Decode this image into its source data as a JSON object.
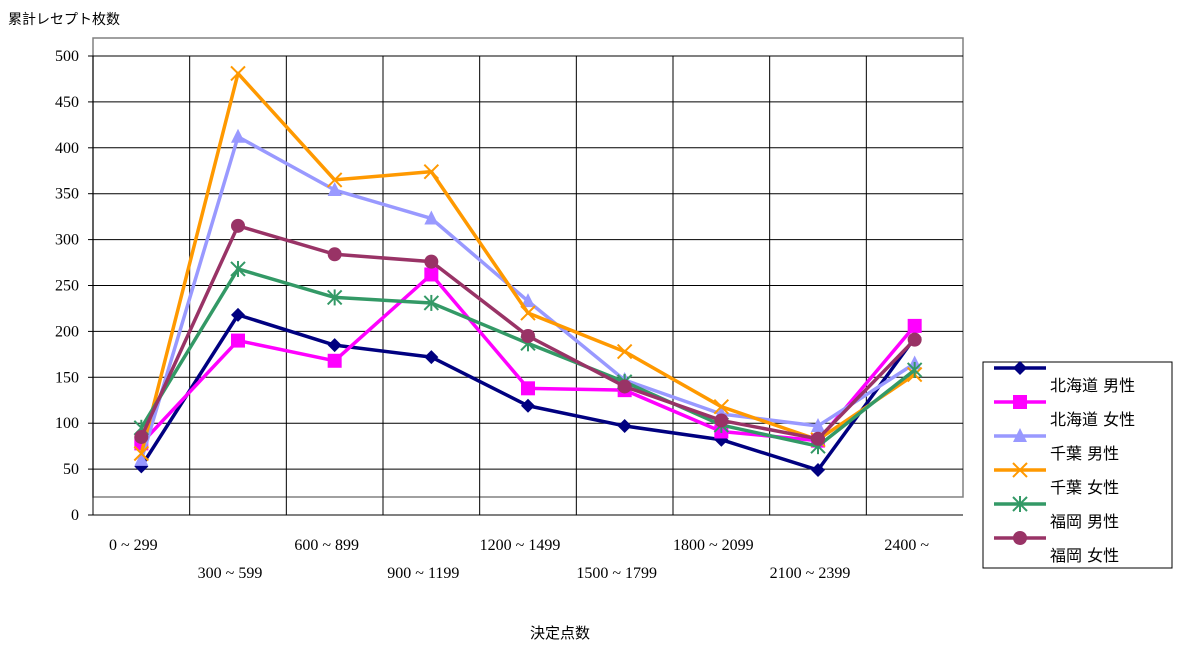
{
  "chart_data": {
    "type": "line",
    "ylabel": "累計レセプト枚数",
    "xlabel": "決定点数",
    "ylim": [
      0,
      500
    ],
    "yticks": [
      0,
      50,
      100,
      150,
      200,
      250,
      300,
      350,
      400,
      450,
      500
    ],
    "grid": true,
    "legend_position": "right",
    "categories": [
      "0 ~ 299",
      "300 ~ 599",
      "600 ~ 899",
      "900 ~ 1199",
      "1200 ~ 1499",
      "1500 ~ 1799",
      "1800 ~ 2099",
      "2100 ~ 2399",
      "2400 ~"
    ],
    "series": [
      {
        "name": "北海道 男性",
        "color": "#000080",
        "marker": "diamond",
        "values": [
          53,
          218,
          185,
          172,
          119,
          97,
          82,
          49,
          193
        ]
      },
      {
        "name": "北海道 女性",
        "color": "#ff00ff",
        "marker": "square",
        "values": [
          78,
          190,
          168,
          262,
          138,
          136,
          91,
          81,
          206
        ]
      },
      {
        "name": "千葉 男性",
        "color": "#9999ff",
        "marker": "triangle",
        "values": [
          60,
          412,
          354,
          323,
          233,
          147,
          110,
          97,
          165
        ]
      },
      {
        "name": "千葉 女性",
        "color": "#ff9900",
        "marker": "x",
        "values": [
          67,
          481,
          365,
          374,
          220,
          178,
          118,
          82,
          153
        ]
      },
      {
        "name": "福岡 男性",
        "color": "#339966",
        "marker": "star",
        "values": [
          95,
          268,
          237,
          231,
          187,
          145,
          98,
          75,
          158
        ]
      },
      {
        "name": "福岡 女性",
        "color": "#993366",
        "marker": "circle",
        "values": [
          85,
          315,
          284,
          276,
          195,
          140,
          103,
          83,
          191
        ]
      }
    ]
  }
}
